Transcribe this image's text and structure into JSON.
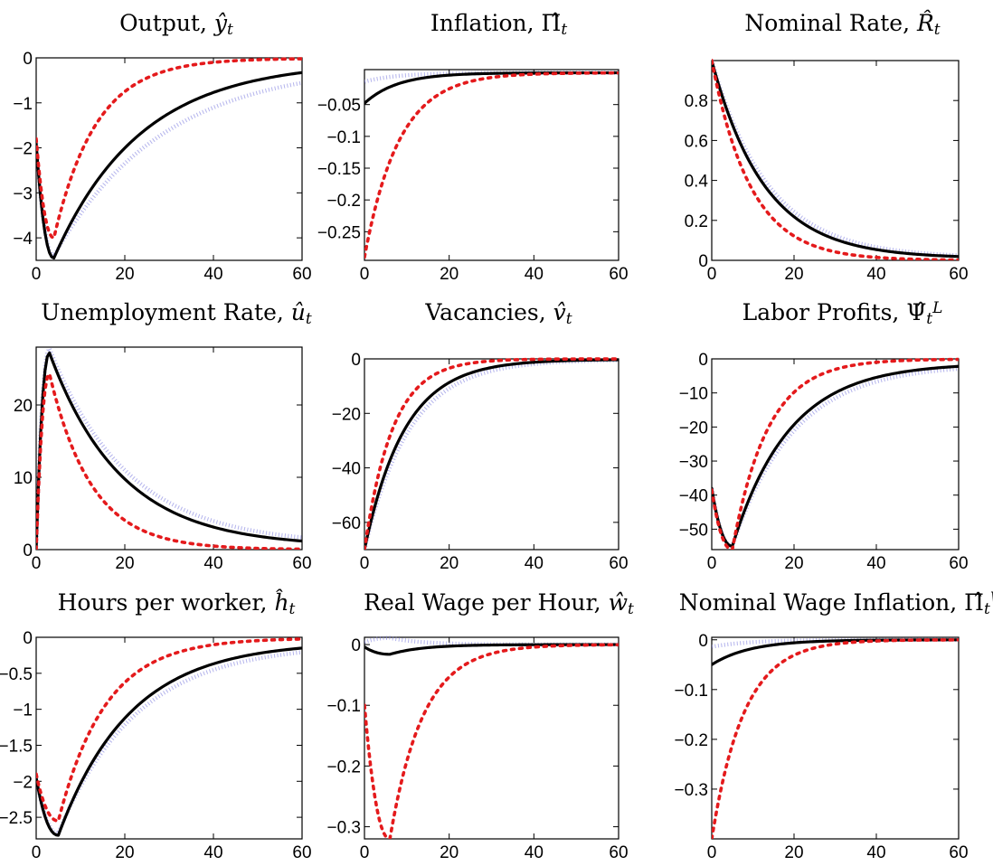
{
  "chart_data": [
    {
      "type": "line",
      "title": "Output, ŷt",
      "title_parts": [
        {
          "t": "Output, "
        },
        {
          "t": "ŷ",
          "i": true
        },
        {
          "t": "t",
          "i": true,
          "sub": true
        }
      ],
      "xlim": [
        0,
        60
      ],
      "ylim": [
        -4.5,
        0
      ],
      "xticks": [
        0,
        20,
        40,
        60
      ],
      "yticks": [
        -4,
        -3,
        -2,
        -1,
        0
      ],
      "ytick_labels": [
        "−4",
        "−3",
        "−2",
        "−1",
        "0"
      ],
      "series": [
        {
          "style": "solid",
          "color": "#000000",
          "init": -1.9,
          "trough": -4.45,
          "tmin": 4,
          "settle": 0.95,
          "end": -0.08
        },
        {
          "style": "dotted-red",
          "color": "#e41a1c",
          "init": -1.8,
          "trough": -4.0,
          "tmin": 4,
          "settle": 0.9,
          "end": -0.01
        },
        {
          "style": "dotted-blue",
          "color": "#8080e0",
          "init": -1.9,
          "trough": -4.4,
          "tmin": 4,
          "settle": 0.96,
          "end": -0.12
        }
      ]
    },
    {
      "type": "line",
      "title": "Inflation, Π̂t",
      "title_parts": [
        {
          "t": "Inflation, "
        },
        {
          "t": "Π̂"
        },
        {
          "t": "t",
          "i": true,
          "sub": true
        }
      ],
      "xlim": [
        0,
        60
      ],
      "ylim": [
        -0.295,
        0.005
      ],
      "xticks": [
        0,
        20,
        40,
        60
      ],
      "yticks": [
        -0.25,
        -0.2,
        -0.15,
        -0.1,
        -0.05
      ],
      "ytick_labels": [
        "−0.25",
        "−0.2",
        "−0.15",
        "−0.1",
        "−0.05"
      ],
      "series": [
        {
          "style": "solid",
          "color": "#000000",
          "init": -0.048,
          "trough": -0.048,
          "tmin": 0,
          "settle": 0.88,
          "end": 0
        },
        {
          "style": "dotted-red",
          "color": "#e41a1c",
          "init": -0.29,
          "trough": -0.29,
          "tmin": 0,
          "settle": 0.885,
          "end": 0
        },
        {
          "style": "dotted-blue",
          "color": "#8080e0",
          "init": -0.014,
          "trough": -0.014,
          "tmin": 0,
          "settle": 0.88,
          "end": 0
        }
      ]
    },
    {
      "type": "line",
      "title": "Nominal Rate, R̂t",
      "title_parts": [
        {
          "t": "Nominal Rate, "
        },
        {
          "t": "R̂",
          "i": true
        },
        {
          "t": "t",
          "i": true,
          "sub": true
        }
      ],
      "xlim": [
        0,
        60
      ],
      "ylim": [
        0,
        1.0
      ],
      "xticks": [
        0,
        20,
        40,
        60
      ],
      "yticks": [
        0,
        0.2,
        0.4,
        0.6,
        0.8
      ],
      "ytick_labels": [
        "0",
        "0.2",
        "0.4",
        "0.6",
        "0.8"
      ],
      "series": [
        {
          "style": "solid",
          "color": "#000000",
          "init": 1.0,
          "trough": 1.0,
          "tmin": 0,
          "settle": 0.925,
          "end": 0.01
        },
        {
          "style": "dotted-red",
          "color": "#e41a1c",
          "init": 1.0,
          "trough": 1.0,
          "tmin": 0,
          "settle": 0.9,
          "end": 0
        },
        {
          "style": "dotted-blue",
          "color": "#8080e0",
          "init": 1.0,
          "trough": 1.0,
          "tmin": 0,
          "settle": 0.93,
          "end": 0.012
        }
      ]
    },
    {
      "type": "line",
      "title": "Unemployment Rate, ût",
      "title_parts": [
        {
          "t": "Unemployment Rate, "
        },
        {
          "t": "û",
          "i": true
        },
        {
          "t": "t",
          "i": true,
          "sub": true
        }
      ],
      "xlim": [
        0,
        60
      ],
      "ylim": [
        0,
        28
      ],
      "xticks": [
        0,
        20,
        40,
        60
      ],
      "yticks": [
        0,
        10,
        20
      ],
      "ytick_labels": [
        "0",
        "10",
        "20"
      ],
      "series": [
        {
          "style": "solid",
          "color": "#000000",
          "init": 0,
          "trough": 27.2,
          "tmin": 3,
          "settle": 0.94,
          "end": 0.4
        },
        {
          "style": "dotted-red",
          "color": "#e41a1c",
          "init": 0,
          "trough": 24.3,
          "tmin": 3,
          "settle": 0.9,
          "end": 0
        },
        {
          "style": "dotted-blue",
          "color": "#8080e0",
          "init": 0,
          "trough": 27.8,
          "tmin": 3,
          "settle": 0.945,
          "end": 0.6
        }
      ]
    },
    {
      "type": "line",
      "title": "Vacancies, v̂t",
      "title_parts": [
        {
          "t": "Vacancies, "
        },
        {
          "t": "v̂",
          "i": true
        },
        {
          "t": "t",
          "i": true,
          "sub": true
        }
      ],
      "xlim": [
        0,
        60
      ],
      "ylim": [
        -70,
        0
      ],
      "xticks": [
        0,
        20,
        40,
        60
      ],
      "yticks": [
        -60,
        -40,
        -20,
        0
      ],
      "ytick_labels": [
        "−60",
        "−40",
        "−20",
        "0"
      ],
      "series": [
        {
          "style": "solid",
          "color": "#000000",
          "init": -70,
          "trough": -70,
          "tmin": 0,
          "settle": 0.9,
          "end": -0.2
        },
        {
          "style": "dotted-red",
          "color": "#e41a1c",
          "init": -70,
          "trough": -70,
          "tmin": 0,
          "settle": 0.86,
          "end": 0
        },
        {
          "style": "dotted-blue",
          "color": "#8080e0",
          "init": -70,
          "trough": -70,
          "tmin": 0,
          "settle": 0.91,
          "end": -0.3
        }
      ]
    },
    {
      "type": "line",
      "title": "Labor Profits, Ψ̂tL",
      "title_parts": [
        {
          "t": "Labor Profits, "
        },
        {
          "t": "Ψ̂"
        },
        {
          "t": "t",
          "i": true,
          "sub": true
        },
        {
          "t": "L",
          "i": true,
          "sup": true
        }
      ],
      "xlim": [
        0,
        60
      ],
      "ylim": [
        -56,
        0
      ],
      "xticks": [
        0,
        20,
        40,
        60
      ],
      "yticks": [
        -50,
        -40,
        -30,
        -20,
        -10,
        0
      ],
      "ytick_labels": [
        "−50",
        "−40",
        "−30",
        "−20",
        "−10",
        "0"
      ],
      "series": [
        {
          "style": "solid",
          "color": "#000000",
          "init": -38,
          "trough": -55,
          "tmin": 5,
          "settle": 0.93,
          "end": -1.2
        },
        {
          "style": "dotted-red",
          "color": "#e41a1c",
          "init": -38.5,
          "trough": -56,
          "tmin": 5,
          "settle": 0.89,
          "end": -0.05
        },
        {
          "style": "dotted-blue",
          "color": "#8080e0",
          "init": -38,
          "trough": -55,
          "tmin": 5,
          "settle": 0.935,
          "end": -1.6
        }
      ]
    },
    {
      "type": "line",
      "title": "Hours per worker, ĥt",
      "title_parts": [
        {
          "t": "Hours per worker, "
        },
        {
          "t": "ĥ",
          "i": true
        },
        {
          "t": "t",
          "i": true,
          "sub": true
        }
      ],
      "xlim": [
        0,
        60
      ],
      "ylim": [
        -2.8,
        0
      ],
      "xticks": [
        0,
        20,
        40,
        60
      ],
      "yticks": [
        -2.5,
        -2,
        -1.5,
        -1,
        -0.5,
        0
      ],
      "ytick_labels": [
        "−2.5",
        "−2",
        "−1.5",
        "−1",
        "−0.5",
        "0"
      ],
      "series": [
        {
          "style": "solid",
          "color": "#000000",
          "init": -1.95,
          "trough": -2.75,
          "tmin": 5,
          "settle": 0.94,
          "end": -0.06
        },
        {
          "style": "dotted-red",
          "color": "#e41a1c",
          "init": -1.9,
          "trough": -2.55,
          "tmin": 5,
          "settle": 0.91,
          "end": -0.01
        },
        {
          "style": "dotted-blue",
          "color": "#8080e0",
          "init": -1.95,
          "trough": -2.72,
          "tmin": 5,
          "settle": 0.945,
          "end": -0.09
        }
      ]
    },
    {
      "type": "line",
      "title": "Real Wage per Hour, ŵt",
      "title_parts": [
        {
          "t": "Real Wage per Hour, "
        },
        {
          "t": "ŵ",
          "i": true
        },
        {
          "t": "t",
          "i": true,
          "sub": true
        }
      ],
      "xlim": [
        0,
        60
      ],
      "ylim": [
        -0.32,
        0.012
      ],
      "xticks": [
        0,
        20,
        40,
        60
      ],
      "yticks": [
        -0.3,
        -0.2,
        -0.1,
        0
      ],
      "ytick_labels": [
        "−0.3",
        "−0.2",
        "−0.1",
        "0"
      ],
      "series": [
        {
          "style": "solid",
          "color": "#000000",
          "init": -0.004,
          "trough": -0.016,
          "tmin": 6,
          "settle": 0.88,
          "end": 0
        },
        {
          "style": "dotted-red",
          "color": "#e41a1c",
          "init": -0.1,
          "trough": -0.32,
          "tmin": 6,
          "settle": 0.88,
          "end": 0
        },
        {
          "style": "dotted-blue",
          "color": "#8080e0",
          "init": 0.004,
          "trough": 0.011,
          "tmin": 6,
          "settle": 0.88,
          "end": 0
        }
      ]
    },
    {
      "type": "line",
      "title": "Nominal Wage Inflation, Π̂tW",
      "title_parts": [
        {
          "t": "Nominal Wage Inflation, "
        },
        {
          "t": "Π̂"
        },
        {
          "t": "t",
          "i": true,
          "sub": true
        },
        {
          "t": "W",
          "i": true,
          "sup": true
        }
      ],
      "xlim": [
        0,
        60
      ],
      "ylim": [
        -0.4,
        0.005
      ],
      "xticks": [
        0,
        20,
        40,
        60
      ],
      "yticks": [
        -0.3,
        -0.2,
        -0.1,
        0
      ],
      "ytick_labels": [
        "−0.3",
        "−0.2",
        "−0.1",
        "0"
      ],
      "series": [
        {
          "style": "solid",
          "color": "#000000",
          "init": -0.05,
          "trough": -0.05,
          "tmin": 0,
          "settle": 0.9,
          "end": 0
        },
        {
          "style": "dotted-red",
          "color": "#e41a1c",
          "init": -0.4,
          "trough": -0.4,
          "tmin": 0,
          "settle": 0.88,
          "end": 0
        },
        {
          "style": "dotted-blue",
          "color": "#8080e0",
          "init": -0.014,
          "trough": -0.014,
          "tmin": 0,
          "settle": 0.9,
          "end": 0
        }
      ]
    }
  ]
}
